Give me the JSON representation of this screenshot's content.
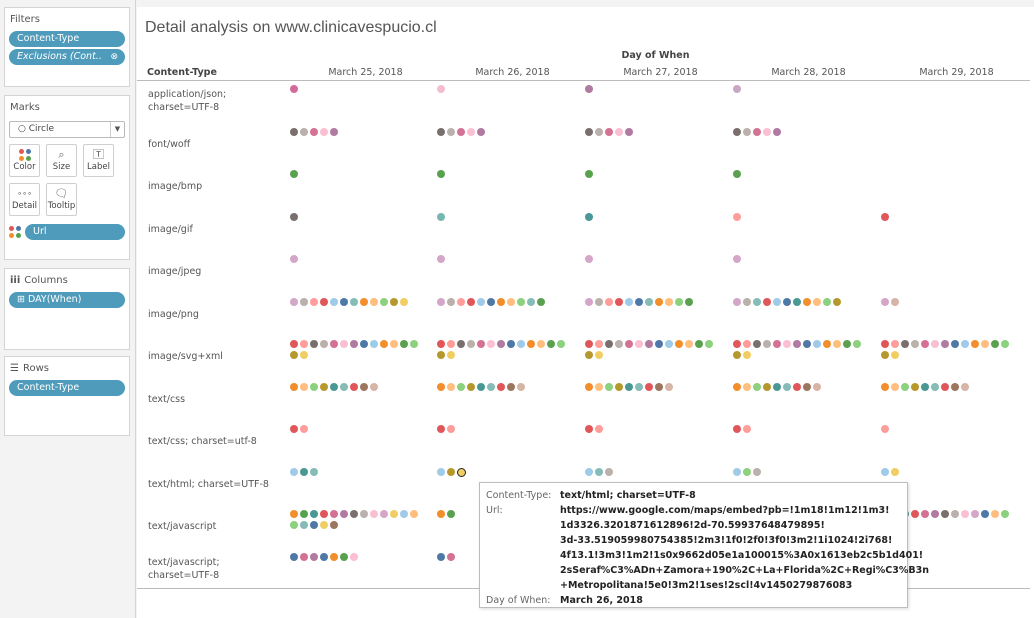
{
  "filters": {
    "title": "Filters",
    "pills": [
      "Content-Type",
      "Exclusions (Cont.."
    ],
    "exclusions_icon": "link-icon"
  },
  "marks": {
    "title": "Marks",
    "mark_type": "Circle",
    "buttons": [
      {
        "label": "Color",
        "icon": "color-dots-icon"
      },
      {
        "label": "Size",
        "icon": "size-icon"
      },
      {
        "label": "Label",
        "icon": "label-icon"
      },
      {
        "label": "Detail",
        "icon": "detail-icon"
      },
      {
        "label": "Tooltip",
        "icon": "tooltip-icon"
      }
    ],
    "color_field": "Url"
  },
  "columns": {
    "title": "Columns",
    "pill": "DAY(When)"
  },
  "rows": {
    "title": "Rows",
    "pill": "Content-Type"
  },
  "viz": {
    "title": "Detail analysis on www.clinicavespucio.cl",
    "column_field": "Day of When",
    "row_field": "Content-Type"
  },
  "chart_data": {
    "type": "scatter",
    "title": "Detail analysis on www.clinicavespucio.cl",
    "xlabel": "Day of When",
    "ylabel": "Content-Type",
    "dates": [
      "March 25, 2018",
      "March 26, 2018",
      "March 27, 2018",
      "March 28, 2018",
      "March 29, 2018"
    ],
    "rows": [
      {
        "label": "application/json;\ncharset=UTF-8",
        "cells": [
          [
            "#d46a9c"
          ],
          [
            "#f5bdd1"
          ],
          [
            "#b07aa1"
          ],
          [
            "#c9a6c4"
          ],
          []
        ]
      },
      {
        "label": "font/woff",
        "cells": [
          [
            "#79706e",
            "#bab0ac",
            "#d37295",
            "#fabfd2",
            "#b07aa1"
          ],
          [
            "#79706e",
            "#bab0ac",
            "#d37295",
            "#fabfd2",
            "#b07aa1"
          ],
          [
            "#79706e",
            "#bab0ac",
            "#d37295",
            "#fabfd2",
            "#b07aa1"
          ],
          [
            "#79706e",
            "#bab0ac",
            "#d37295",
            "#fabfd2",
            "#b07aa1"
          ],
          []
        ]
      },
      {
        "label": "image/bmp",
        "cells": [
          [
            "#59a14f"
          ],
          [
            "#59a14f"
          ],
          [
            "#59a14f"
          ],
          [
            "#59a14f"
          ],
          []
        ]
      },
      {
        "label": "image/gif",
        "cells": [
          [
            "#79706e"
          ],
          [
            "#76b7b2"
          ],
          [
            "#499894"
          ],
          [
            "#ff9d9a"
          ],
          [
            "#e15759"
          ]
        ]
      },
      {
        "label": "image/jpeg",
        "cells": [
          [
            "#d4a6c8"
          ],
          [
            "#d4a6c8"
          ],
          [
            "#d4a6c8"
          ],
          [
            "#d4a6c8"
          ],
          []
        ]
      },
      {
        "label": "image/png",
        "cells": [
          [
            "#d4a6c8",
            "#bab0ac",
            "#ff9d9a",
            "#e15759",
            "#a0cbe8",
            "#4e79a7",
            "#86bcb6",
            "#f28e2b",
            "#ffbe7d",
            "#8cd17d",
            "#b6992d",
            "#f1ce63"
          ],
          [
            "#d4a6c8",
            "#bab0ac",
            "#ff9d9a",
            "#e15759",
            "#a0cbe8",
            "#4e79a7",
            "#f28e2b",
            "#ffbe7d",
            "#8cd17d",
            "#86bcb6",
            "#59a14f"
          ],
          [
            "#d4a6c8",
            "#bab0ac",
            "#ff9d9a",
            "#e15759",
            "#a0cbe8",
            "#4e79a7",
            "#86bcb6",
            "#f28e2b",
            "#ffbe7d",
            "#8cd17d",
            "#59a14f"
          ],
          [
            "#d4a6c8",
            "#bab0ac",
            "#86bcb6",
            "#e15759",
            "#a0cbe8",
            "#4e79a7",
            "#499894",
            "#f28e2b",
            "#ffbe7d",
            "#8cd17d",
            "#b6992d"
          ],
          [
            "#d4a6c8",
            "#d7b5a6"
          ]
        ]
      },
      {
        "label": "image/svg+xml",
        "cells": [
          [
            "#e15759",
            "#ff9d9a",
            "#79706e",
            "#bab0ac",
            "#d37295",
            "#fabfd2",
            "#b07aa1",
            "#4e79a7",
            "#a0cbe8",
            "#f28e2b",
            "#ffbe7d",
            "#59a14f",
            "#8cd17d",
            "#b6992d",
            "#f1ce63"
          ],
          [
            "#e15759",
            "#ff9d9a",
            "#79706e",
            "#bab0ac",
            "#d37295",
            "#fabfd2",
            "#b07aa1",
            "#4e79a7",
            "#a0cbe8",
            "#f28e2b",
            "#ffbe7d",
            "#59a14f",
            "#8cd17d",
            "#b6992d",
            "#f1ce63"
          ],
          [
            "#e15759",
            "#ff9d9a",
            "#79706e",
            "#bab0ac",
            "#d37295",
            "#fabfd2",
            "#b07aa1",
            "#4e79a7",
            "#a0cbe8",
            "#f28e2b",
            "#ffbe7d",
            "#59a14f",
            "#8cd17d",
            "#b6992d",
            "#f1ce63"
          ],
          [
            "#e15759",
            "#ff9d9a",
            "#79706e",
            "#bab0ac",
            "#d37295",
            "#fabfd2",
            "#b07aa1",
            "#4e79a7",
            "#a0cbe8",
            "#f28e2b",
            "#ffbe7d",
            "#59a14f",
            "#8cd17d",
            "#b6992d",
            "#f1ce63"
          ],
          [
            "#e15759",
            "#ff9d9a",
            "#79706e",
            "#bab0ac",
            "#d37295",
            "#fabfd2",
            "#b07aa1",
            "#4e79a7",
            "#a0cbe8",
            "#f28e2b",
            "#ffbe7d",
            "#59a14f",
            "#8cd17d",
            "#b6992d",
            "#f1ce63"
          ]
        ]
      },
      {
        "label": "text/css",
        "cells": [
          [
            "#f28e2b",
            "#ffbe7d",
            "#8cd17d",
            "#b6992d",
            "#499894",
            "#86bcb6",
            "#e15759",
            "#9d7660",
            "#d7b5a6"
          ],
          [
            "#f28e2b",
            "#ffbe7d",
            "#8cd17d",
            "#b6992d",
            "#499894",
            "#86bcb6",
            "#e15759",
            "#9d7660",
            "#d7b5a6"
          ],
          [
            "#f28e2b",
            "#ffbe7d",
            "#8cd17d",
            "#b6992d",
            "#499894",
            "#86bcb6",
            "#e15759",
            "#9d7660",
            "#d7b5a6"
          ],
          [
            "#f28e2b",
            "#ffbe7d",
            "#8cd17d",
            "#b6992d",
            "#499894",
            "#86bcb6",
            "#e15759",
            "#9d7660",
            "#d7b5a6"
          ],
          [
            "#f28e2b",
            "#ffbe7d",
            "#8cd17d",
            "#b6992d",
            "#499894",
            "#86bcb6",
            "#e15759",
            "#9d7660",
            "#d7b5a6"
          ]
        ]
      },
      {
        "label": "text/css; charset=utf-8",
        "cells": [
          [
            "#e15759",
            "#ff9d9a"
          ],
          [
            "#e15759",
            "#ff9d9a"
          ],
          [
            "#e15759",
            "#ff9d9a"
          ],
          [
            "#e15759",
            "#ff9d9a"
          ],
          [
            "#ff9d9a"
          ]
        ]
      },
      {
        "label": "text/html; charset=UTF-8",
        "cells": [
          [
            "#a0cbe8",
            "#499894",
            "#86bcb6"
          ],
          [
            "#a0cbe8",
            "#b6992d",
            "#f1ce63"
          ],
          [
            "#a0cbe8",
            "#86bcb6",
            "#bab0ac"
          ],
          [
            "#a0cbe8",
            "#8cd17d",
            "#bab0ac"
          ],
          [
            "#a0cbe8",
            "#f1ce63"
          ]
        ]
      },
      {
        "label": "text/javascript",
        "cells": [
          [
            "#f28e2b",
            "#59a14f",
            "#499894",
            "#e15759",
            "#d37295",
            "#b07aa1",
            "#79706e",
            "#bab0ac",
            "#fabfd2",
            "#d4a6c8",
            "#f1ce63",
            "#a0cbe8",
            "#ffbe7d",
            "#8cd17d",
            "#86bcb6",
            "#4e79a7",
            "#f1ce63",
            "#9d7660"
          ],
          [
            "#f28e2b",
            "#59a14f"
          ],
          [],
          [],
          [
            "#f28e2b",
            "#59a14f",
            "#499894",
            "#e15759",
            "#d37295",
            "#b07aa1",
            "#79706e",
            "#bab0ac",
            "#fabfd2",
            "#d4a6c8",
            "#4e79a7",
            "#ffbe7d",
            "#8cd17d"
          ]
        ]
      },
      {
        "label": "text/javascript;\ncharset=UTF-8",
        "cells": [
          [
            "#4e79a7",
            "#d37295",
            "#b07aa1",
            "#4e79a7",
            "#f28e2b",
            "#59a14f",
            "#fabfd2"
          ],
          [
            "#4e79a7",
            "#d37295"
          ],
          [],
          [],
          []
        ]
      }
    ]
  },
  "tooltip": {
    "k_content": "Content-Type:",
    "v_content": "text/html; charset=UTF-8",
    "k_url": "Url:",
    "v_url": "https://www.google.com/maps/embed?pb=!1m18!1m12!1m3!\n1d3326.3201871612896!2d-70.59937648479895!\n3d-33.519059980754385!2m3!1f0!2f0!3f0!3m2!1i1024!2i768!\n4f13.1!3m3!1m2!1s0x9662d05e1a100015%3A0x1613eb2c5b1d401!\n2sSeraf%C3%ADn+Zamora+190%2C+La+Florida%2C+Regi%C3%B3n\n+Metropolitana!5e0!3m2!1ses!2scl!4v1450279876083",
    "k_day": "Day of When:",
    "v_day": "March 26, 2018"
  }
}
